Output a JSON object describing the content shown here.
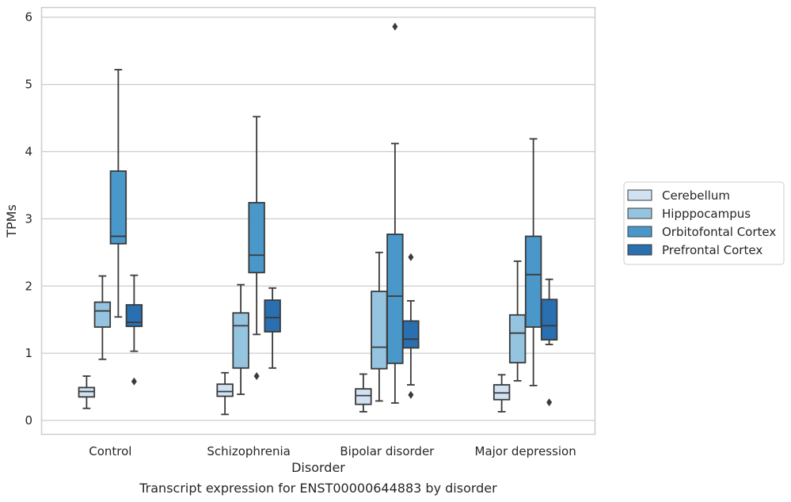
{
  "chart_data": {
    "type": "box",
    "caption": "Transcript expression for ENST00000644883 by disorder",
    "xlabel": "Disorder",
    "ylabel": "TPMs",
    "ylim": [
      -0.2,
      6.15
    ],
    "yticks": [
      "0",
      "1",
      "2",
      "3",
      "4",
      "5",
      "6"
    ],
    "grid": "horizontal",
    "legend_position": "right",
    "categories": [
      "Control",
      "Schizophrenia",
      "Bipolar disorder",
      "Major depression"
    ],
    "series": [
      {
        "name": "Cerebellum",
        "color": "#d0e1f2",
        "boxes": [
          {
            "whislo": 0.18,
            "q1": 0.35,
            "med": 0.43,
            "q3": 0.49,
            "whishi": 0.66,
            "fliers": []
          },
          {
            "whislo": 0.09,
            "q1": 0.36,
            "med": 0.43,
            "q3": 0.54,
            "whishi": 0.71,
            "fliers": []
          },
          {
            "whislo": 0.13,
            "q1": 0.24,
            "med": 0.37,
            "q3": 0.47,
            "whishi": 0.69,
            "fliers": []
          },
          {
            "whislo": 0.13,
            "q1": 0.31,
            "med": 0.41,
            "q3": 0.53,
            "whishi": 0.68,
            "fliers": []
          }
        ]
      },
      {
        "name": "Hipppocampus",
        "color": "#94c4df",
        "boxes": [
          {
            "whislo": 0.91,
            "q1": 1.39,
            "med": 1.63,
            "q3": 1.76,
            "whishi": 2.15,
            "fliers": []
          },
          {
            "whislo": 0.39,
            "q1": 0.78,
            "med": 1.41,
            "q3": 1.6,
            "whishi": 2.02,
            "fliers": []
          },
          {
            "whislo": 0.29,
            "q1": 0.77,
            "med": 1.09,
            "q3": 1.92,
            "whishi": 2.5,
            "fliers": []
          },
          {
            "whislo": 0.59,
            "q1": 0.86,
            "med": 1.3,
            "q3": 1.57,
            "whishi": 2.37,
            "fliers": []
          }
        ]
      },
      {
        "name": "Orbitofontal Cortex",
        "color": "#4a98c9",
        "boxes": [
          {
            "whislo": 1.54,
            "q1": 2.63,
            "med": 2.74,
            "q3": 3.71,
            "whishi": 5.22,
            "fliers": []
          },
          {
            "whislo": 1.28,
            "q1": 2.2,
            "med": 2.46,
            "q3": 3.24,
            "whishi": 4.52,
            "fliers": [
              0.66
            ]
          },
          {
            "whislo": 0.26,
            "q1": 0.85,
            "med": 1.85,
            "q3": 2.77,
            "whishi": 4.12,
            "fliers": [
              5.86
            ]
          },
          {
            "whislo": 0.52,
            "q1": 1.39,
            "med": 2.17,
            "q3": 2.74,
            "whishi": 4.19,
            "fliers": []
          }
        ]
      },
      {
        "name": "Prefrontal Cortex",
        "color": "#2a6fb0",
        "boxes": [
          {
            "whislo": 1.03,
            "q1": 1.4,
            "med": 1.46,
            "q3": 1.72,
            "whishi": 2.16,
            "fliers": [
              0.58
            ]
          },
          {
            "whislo": 0.78,
            "q1": 1.32,
            "med": 1.53,
            "q3": 1.79,
            "whishi": 1.97,
            "fliers": []
          },
          {
            "whislo": 0.53,
            "q1": 1.08,
            "med": 1.21,
            "q3": 1.48,
            "whishi": 1.78,
            "fliers": [
              2.43,
              0.38
            ]
          },
          {
            "whislo": 1.13,
            "q1": 1.2,
            "med": 1.41,
            "q3": 1.8,
            "whishi": 2.1,
            "fliers": [
              0.27
            ]
          }
        ]
      }
    ]
  }
}
